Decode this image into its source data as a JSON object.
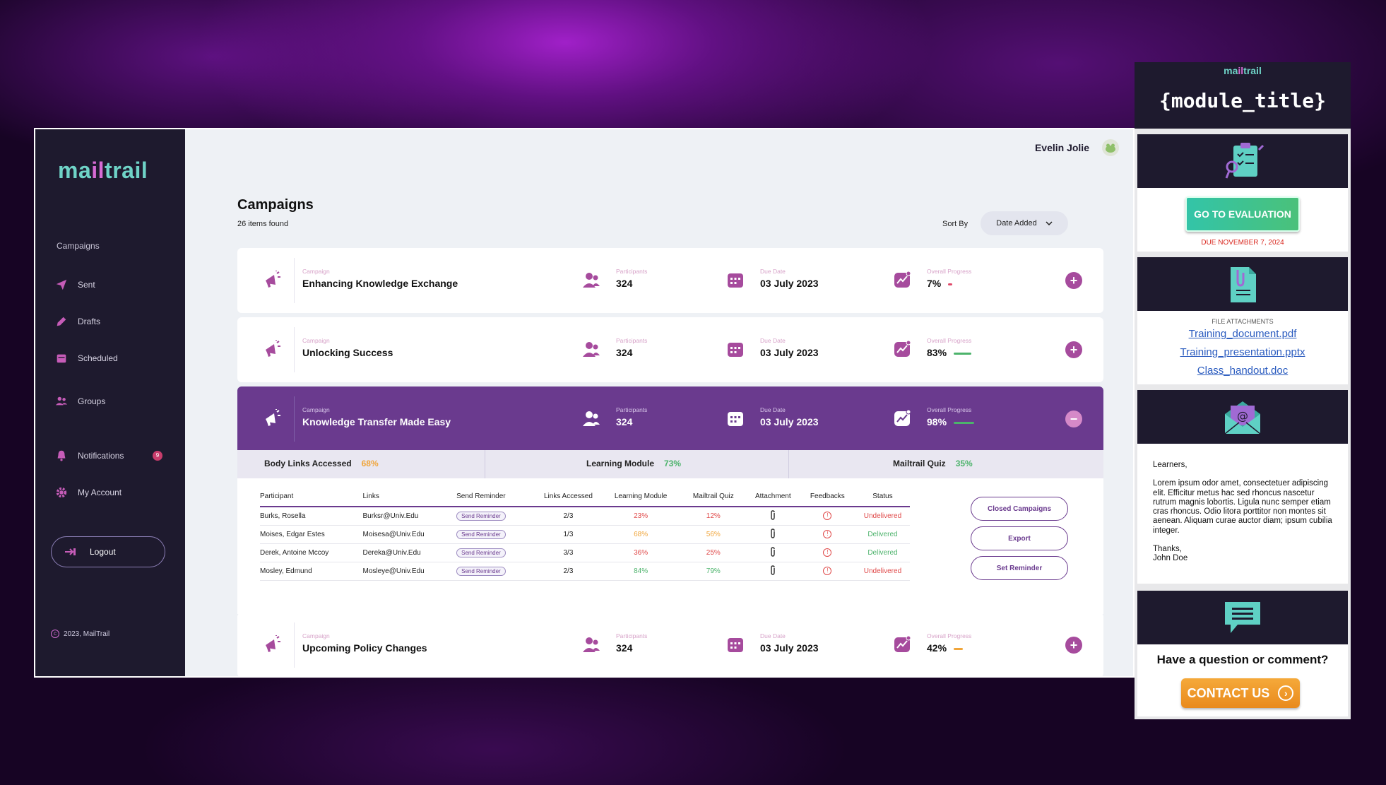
{
  "app": {
    "logo_left": "ma",
    "logo_il": "il",
    "logo_right": "trail",
    "user_name": "Evelin Jolie"
  },
  "sidebar": {
    "section": "Campaigns",
    "items": [
      {
        "label": "Sent",
        "icon": "send-icon"
      },
      {
        "label": "Drafts",
        "icon": "pencil-icon"
      },
      {
        "label": "Scheduled",
        "icon": "calendar-icon"
      },
      {
        "label": "Groups",
        "icon": "users-icon"
      },
      {
        "label": "Notifications",
        "icon": "bell-icon",
        "badge": "9"
      },
      {
        "label": "My Account",
        "icon": "gear-icon"
      }
    ],
    "logout": "Logout",
    "copyright": "2023, MailTrail"
  },
  "campaigns": {
    "title": "Campaigns",
    "found": "26 items found",
    "sort_label": "Sort By",
    "sort_value": "Date Added",
    "labels": {
      "campaign": "Campaign",
      "participants": "Participants",
      "due": "Due Date",
      "progress": "Overall Progress"
    },
    "cards": [
      {
        "name": "Enhancing Knowledge Exchange",
        "participants": "324",
        "due": "03 July 2023",
        "progress": "7%",
        "progress_value": 0.07,
        "bar_color": "#e04a6a",
        "toggle": "+"
      },
      {
        "name": "Unlocking Success",
        "participants": "324",
        "due": "03 July 2023",
        "progress": "83%",
        "progress_value": 0.83,
        "bar_color": "#4cb36b",
        "toggle": "+"
      },
      {
        "name": "Knowledge Transfer Made Easy",
        "participants": "324",
        "due": "03 July 2023",
        "progress": "98%",
        "progress_value": 0.98,
        "bar_color": "#4cb36b",
        "toggle": "−"
      },
      {
        "name": "Upcoming Policy Changes",
        "participants": "324",
        "due": "03 July 2023",
        "progress": "42%",
        "progress_value": 0.42,
        "bar_color": "#f0a53a",
        "toggle": "+"
      }
    ]
  },
  "summary": {
    "body_links": {
      "label": "Body Links Accessed",
      "value": "68%"
    },
    "learning": {
      "label": "Learning Module",
      "value": "73%"
    },
    "quiz": {
      "label": "Mailtrail Quiz",
      "value": "35%"
    }
  },
  "table": {
    "headers": [
      "Participant",
      "Links",
      "Send Reminder",
      "Links Accessed",
      "Learning Module",
      "Mailtrail Quiz",
      "Attachment",
      "Feedbacks",
      "Status"
    ],
    "reminder_label": "Send Reminder",
    "rows": [
      {
        "participant": "Burks, Rosella",
        "link": "Burksr@Univ.Edu",
        "accessed": "2/3",
        "learning": "23%",
        "learning_color": "#e04a4a",
        "quiz": "12%",
        "quiz_color": "#e04a4a",
        "status": "Undelivered",
        "status_type": "u"
      },
      {
        "participant": "Moises, Edgar Estes",
        "link": "Moisesa@Univ.Edu",
        "accessed": "1/3",
        "learning": "68%",
        "learning_color": "#f0a53a",
        "quiz": "56%",
        "quiz_color": "#f0a53a",
        "status": "Delivered",
        "status_type": "d"
      },
      {
        "participant": "Derek, Antoine Mccoy",
        "link": "Dereka@Univ.Edu",
        "accessed": "3/3",
        "learning": "36%",
        "learning_color": "#e04a4a",
        "quiz": "25%",
        "quiz_color": "#e04a4a",
        "status": "Delivered",
        "status_type": "d"
      },
      {
        "participant": "Mosley, Edmund",
        "link": "Mosleye@Univ.Edu",
        "accessed": "2/3",
        "learning": "84%",
        "learning_color": "#4cb36b",
        "quiz": "79%",
        "quiz_color": "#4cb36b",
        "status": "Undelivered",
        "status_type": "u"
      }
    ]
  },
  "actions": {
    "closed": "Closed Campaigns",
    "export": "Export",
    "reminder": "Set Reminder"
  },
  "email": {
    "brand_left": "ma",
    "brand_il": "il",
    "brand_right": "trail",
    "module_title": "{module_title}",
    "eval_button": "GO TO EVALUATION",
    "due": "DUE NOVEMBER 7, 2024",
    "attachments_label": "FILE ATTACHMENTS",
    "attachments": [
      "Training_document.pdf",
      "Training_presentation.pptx",
      "Class_handout.doc"
    ],
    "greeting": "Learners,",
    "body": "Lorem ipsum odor amet, consectetuer adipiscing elit. Efficitur metus hac sed rhoncus nascetur rutrum magnis lobortis. Ligula nunc semper etiam cras rhoncus. Odio litora porttitor non montes sit aenean. Aliquam curae auctor diam; ipsum cubilia integer.",
    "thanks": "Thanks,",
    "signature": "John Doe",
    "question": "Have a question or comment?",
    "contact": "CONTACT US"
  }
}
